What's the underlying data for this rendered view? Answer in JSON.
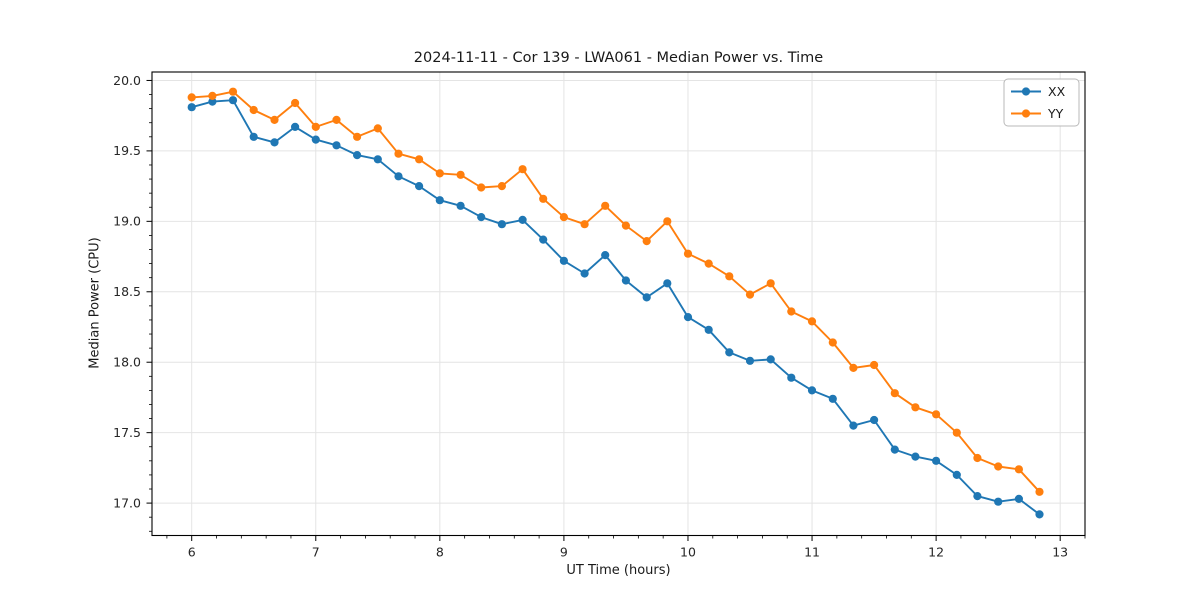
{
  "chart_data": {
    "type": "line",
    "title": "2024-11-11 - Cor 139 - LWA061 - Median Power vs. Time",
    "xlabel": "UT Time (hours)",
    "ylabel": "Median Power (CPU)",
    "marker": "circle",
    "grid": true,
    "legend_position": "upper right",
    "xlim": [
      5.68,
      13.2
    ],
    "ylim": [
      16.77,
      20.06
    ],
    "x_ticks": [
      6,
      7,
      8,
      9,
      10,
      11,
      12,
      13
    ],
    "y_ticks": [
      17.0,
      17.5,
      18.0,
      18.5,
      19.0,
      19.5,
      20.0
    ],
    "x_minor_step": 0.2,
    "y_minor_step": 0.1,
    "x": [
      6.0,
      6.167,
      6.333,
      6.5,
      6.667,
      6.833,
      7.0,
      7.167,
      7.333,
      7.5,
      7.667,
      7.833,
      8.0,
      8.167,
      8.333,
      8.5,
      8.667,
      8.833,
      9.0,
      9.167,
      9.333,
      9.5,
      9.667,
      9.833,
      10.0,
      10.167,
      10.333,
      10.5,
      10.667,
      10.833,
      11.0,
      11.167,
      11.333,
      11.5,
      11.667,
      11.833,
      12.0,
      12.167,
      12.333,
      12.5,
      12.667,
      12.833
    ],
    "series": [
      {
        "name": "XX",
        "color": "#1f77b4",
        "values": [
          19.81,
          19.85,
          19.86,
          19.6,
          19.56,
          19.67,
          19.58,
          19.54,
          19.47,
          19.44,
          19.32,
          19.25,
          19.15,
          19.11,
          19.03,
          18.98,
          19.01,
          18.87,
          18.72,
          18.63,
          18.76,
          18.58,
          18.46,
          18.56,
          18.32,
          18.23,
          18.07,
          18.01,
          18.02,
          17.89,
          17.8,
          17.74,
          17.55,
          17.59,
          17.38,
          17.33,
          17.3,
          17.2,
          17.05,
          17.01,
          17.03,
          16.92
        ]
      },
      {
        "name": "YY",
        "color": "#ff7f0e",
        "values": [
          19.88,
          19.89,
          19.92,
          19.79,
          19.72,
          19.84,
          19.67,
          19.72,
          19.6,
          19.66,
          19.48,
          19.44,
          19.34,
          19.33,
          19.24,
          19.25,
          19.37,
          19.16,
          19.03,
          18.98,
          19.11,
          18.97,
          18.86,
          19.0,
          18.77,
          18.7,
          18.61,
          18.48,
          18.56,
          18.36,
          18.29,
          18.14,
          17.96,
          17.98,
          17.78,
          17.68,
          17.63,
          17.5,
          17.32,
          17.26,
          17.24,
          17.08
        ]
      }
    ],
    "style": {
      "grid_color": "#e4e4e4",
      "spine_color": "#000000",
      "tick_label_color": "#262626",
      "legend_border_color": "#b8b8b8",
      "background": "#ffffff"
    }
  }
}
